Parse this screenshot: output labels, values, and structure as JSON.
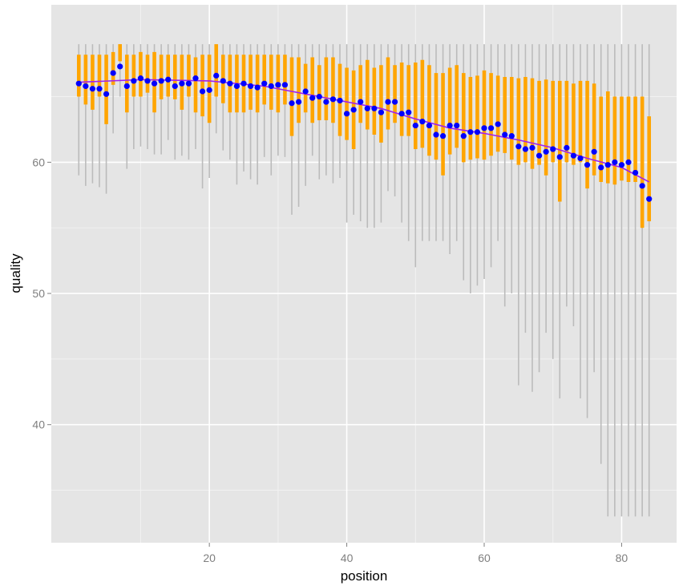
{
  "chart_data": {
    "type": "boxplot",
    "xlabel": "position",
    "ylabel": "quality",
    "xlim": [
      -3,
      88
    ],
    "ylim": [
      31,
      72
    ],
    "x_ticks": [
      20,
      40,
      60,
      80
    ],
    "y_ticks": [
      40,
      50,
      60
    ],
    "grid": true,
    "legend": "none",
    "colors": {
      "panel": "#e5e5e5",
      "grid_major": "#ffffff",
      "grid_minor": "#f2f2f2",
      "whisker": "#bbbbbb",
      "box": "#ffa500",
      "mean_point": "#0000ff",
      "smooth_line": "#a020f0"
    },
    "positions": [
      1,
      2,
      3,
      4,
      5,
      6,
      7,
      8,
      9,
      10,
      11,
      12,
      13,
      14,
      15,
      16,
      17,
      18,
      19,
      20,
      21,
      22,
      23,
      24,
      25,
      26,
      27,
      28,
      29,
      30,
      31,
      32,
      33,
      34,
      35,
      36,
      37,
      38,
      39,
      40,
      41,
      42,
      43,
      44,
      45,
      46,
      47,
      48,
      49,
      50,
      51,
      52,
      53,
      54,
      55,
      56,
      57,
      58,
      59,
      60,
      61,
      62,
      63,
      64,
      65,
      66,
      67,
      68,
      69,
      70,
      71,
      72,
      73,
      74,
      75,
      76,
      77,
      78,
      79,
      80,
      81,
      82,
      83,
      84
    ],
    "whisker_low": [
      59,
      58.2,
      58.4,
      58.1,
      57.6,
      62.2,
      65,
      59.5,
      61,
      61.2,
      61,
      60.6,
      60.6,
      61.7,
      60.2,
      60.5,
      60.2,
      61,
      58,
      58.8,
      62.2,
      60.9,
      60.2,
      58.3,
      59.3,
      58.7,
      58.3,
      60.4,
      59,
      60.5,
      60.4,
      56,
      56.6,
      58.2,
      60.5,
      58.7,
      59,
      58.4,
      58.8,
      55.4,
      56,
      55.5,
      55,
      55,
      55.4,
      57.8,
      57.4,
      55.4,
      54,
      52,
      54,
      54,
      54,
      54,
      53,
      54,
      51,
      50,
      50.6,
      51.1,
      52,
      54,
      49,
      50,
      43,
      47,
      42.5,
      44,
      47,
      45,
      42,
      49,
      47.5,
      42,
      40.5,
      44,
      37,
      33,
      33,
      33,
      33,
      33,
      33,
      33
    ],
    "q1": [
      65,
      64.4,
      64,
      65,
      62.9,
      65.9,
      67.7,
      63.8,
      65,
      65,
      65.3,
      63.8,
      64.8,
      65,
      64.8,
      64,
      65,
      63.8,
      63.5,
      63,
      65,
      64.5,
      63.8,
      63.8,
      63.8,
      64,
      63.8,
      64.4,
      64,
      63.8,
      64.4,
      62,
      63,
      63.8,
      63,
      63.2,
      63.2,
      63,
      62,
      61.7,
      61,
      63,
      62.5,
      62.1,
      61.5,
      62.5,
      63,
      62,
      62,
      61,
      61.1,
      60.5,
      60.2,
      59,
      60.6,
      61.1,
      60,
      60.2,
      60.3,
      60.2,
      60.5,
      60.8,
      60.7,
      60.2,
      59.8,
      60,
      59.5,
      59.8,
      59,
      60,
      57,
      60,
      59.8,
      60,
      58,
      59,
      58.5,
      58.4,
      58.3,
      58.6,
      58.5,
      58.5,
      55,
      55.5
    ],
    "q3": [
      68.2,
      68.2,
      68.2,
      68.2,
      68.2,
      68.4,
      69,
      68.2,
      68.2,
      68.4,
      68.2,
      68.4,
      68.2,
      68.2,
      68.2,
      68.2,
      68.2,
      68,
      68.2,
      68.2,
      69,
      68.2,
      68.2,
      68.2,
      68.2,
      68.2,
      68.2,
      68.2,
      68.2,
      68.2,
      68.2,
      68,
      68,
      67.5,
      68,
      67.4,
      68,
      68,
      67.5,
      67.2,
      67,
      67.4,
      67.8,
      67.2,
      67.4,
      68,
      67.4,
      67.6,
      67.4,
      67.6,
      67.8,
      67.4,
      66.8,
      66.8,
      67.2,
      67.4,
      66.8,
      66.5,
      66.6,
      67,
      66.8,
      66.6,
      66.5,
      66.5,
      66.4,
      66.5,
      66.4,
      66.2,
      66.3,
      66.2,
      66.2,
      66.2,
      66,
      66.2,
      66.2,
      66,
      65,
      65.4,
      65,
      65,
      65,
      65,
      65,
      63.5
    ],
    "mean": [
      66,
      65.8,
      65.6,
      65.6,
      65.2,
      66.8,
      67.3,
      65.8,
      66.2,
      66.4,
      66.2,
      66,
      66.2,
      66.3,
      65.8,
      66,
      66,
      66.4,
      65.4,
      65.5,
      66.6,
      66.2,
      66,
      65.8,
      66,
      65.8,
      65.7,
      66,
      65.8,
      65.9,
      65.9,
      64.5,
      64.6,
      65.4,
      64.9,
      65,
      64.6,
      64.8,
      64.7,
      63.7,
      64,
      64.6,
      64.1,
      64.1,
      63.8,
      64.6,
      64.6,
      63.7,
      63.8,
      62.8,
      63.1,
      62.8,
      62.1,
      62,
      62.8,
      62.8,
      62,
      62.3,
      62.3,
      62.6,
      62.6,
      62.9,
      62.1,
      62,
      61.2,
      61,
      61.1,
      60.5,
      60.8,
      61,
      60.4,
      61.1,
      60.5,
      60.3,
      59.8,
      60.8,
      59.6,
      59.8,
      60,
      59.8,
      60,
      59.2,
      58.2,
      57.2
    ],
    "smooth": [
      [
        1,
        66.1
      ],
      [
        10,
        66.3
      ],
      [
        20,
        66.2
      ],
      [
        28,
        65.8
      ],
      [
        35,
        65.1
      ],
      [
        45,
        64.1
      ],
      [
        50,
        63.3
      ],
      [
        55,
        62.6
      ],
      [
        60,
        62.2
      ],
      [
        65,
        61.7
      ],
      [
        70,
        61.1
      ],
      [
        75,
        60.3
      ],
      [
        80,
        59.6
      ],
      [
        84,
        58.5
      ]
    ]
  }
}
